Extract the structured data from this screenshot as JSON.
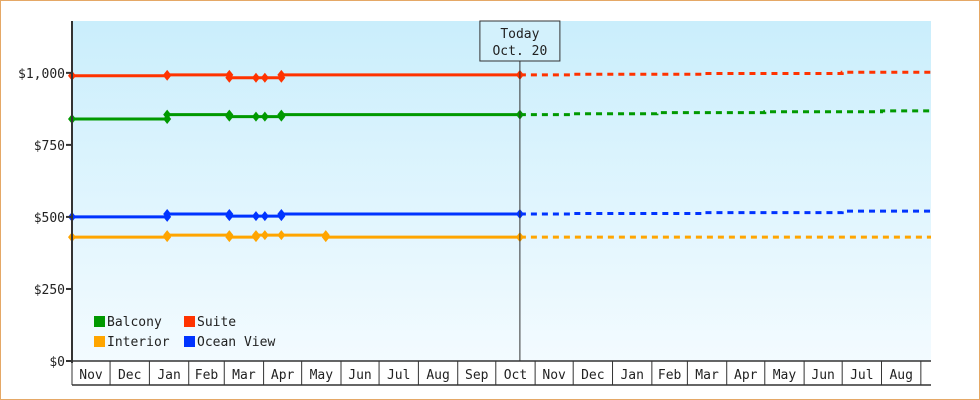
{
  "chart_data": {
    "type": "line",
    "title": "",
    "xlabel": "",
    "ylabel": "",
    "ylim": [
      0,
      1180
    ],
    "xlim": [
      "2012-11-01",
      "2014-09-09"
    ],
    "y_ticks": [
      "$0",
      "$250",
      "$500",
      "$750",
      "$1,000"
    ],
    "y_tick_values": [
      0,
      250,
      500,
      750,
      1000
    ],
    "month_labels": [
      "Nov",
      "Dec",
      "Jan",
      "Feb",
      "Mar",
      "Apr",
      "May",
      "Jun",
      "Jul",
      "Aug",
      "Sep",
      "Oct",
      "Nov",
      "Dec",
      "Jan",
      "Feb",
      "Mar",
      "Apr",
      "May",
      "Jun",
      "Jul",
      "Aug"
    ],
    "grid": false,
    "legend_placement": "bottom-left",
    "today": {
      "title": "Today",
      "date_label": "Oct. 20",
      "date": "2013-10-20"
    },
    "series": [
      {
        "name": "Suite",
        "color": "#ff3300",
        "history": [
          [
            "2012-11-01",
            990
          ],
          [
            "2013-01-15",
            993
          ],
          [
            "2013-03-05",
            983
          ],
          [
            "2013-03-26",
            983
          ],
          [
            "2013-04-02",
            983
          ],
          [
            "2013-04-15",
            993
          ],
          [
            "2013-10-20",
            993
          ]
        ],
        "forecast": [
          [
            "2013-10-20",
            993
          ],
          [
            "2013-12-01",
            995
          ],
          [
            "2014-03-15",
            998
          ],
          [
            "2014-07-01",
            1002
          ],
          [
            "2014-09-09",
            1002
          ]
        ]
      },
      {
        "name": "Balcony",
        "color": "#009900",
        "history": [
          [
            "2012-11-01",
            840
          ],
          [
            "2013-01-15",
            855
          ],
          [
            "2013-03-05",
            848
          ],
          [
            "2013-03-26",
            848
          ],
          [
            "2013-04-02",
            848
          ],
          [
            "2013-04-15",
            855
          ],
          [
            "2013-10-20",
            855
          ]
        ],
        "forecast": [
          [
            "2013-10-20",
            855
          ],
          [
            "2013-11-30",
            858
          ],
          [
            "2014-02-05",
            862
          ],
          [
            "2014-05-01",
            865
          ],
          [
            "2014-08-01",
            868
          ],
          [
            "2014-09-09",
            868
          ]
        ]
      },
      {
        "name": "Interior",
        "color": "#ffa500",
        "history": [
          [
            "2012-11-01",
            430
          ],
          [
            "2013-01-15",
            437
          ],
          [
            "2013-03-05",
            430
          ],
          [
            "2013-03-26",
            437
          ],
          [
            "2013-04-02",
            437
          ],
          [
            "2013-04-15",
            437
          ],
          [
            "2013-05-20",
            430
          ],
          [
            "2013-10-20",
            430
          ]
        ],
        "forecast": [
          [
            "2013-10-20",
            430
          ],
          [
            "2014-09-09",
            430
          ]
        ]
      },
      {
        "name": "Ocean View",
        "color": "#0033ff",
        "history": [
          [
            "2012-11-01",
            500
          ],
          [
            "2013-01-15",
            510
          ],
          [
            "2013-03-05",
            503
          ],
          [
            "2013-03-26",
            503
          ],
          [
            "2013-04-02",
            503
          ],
          [
            "2013-04-15",
            510
          ],
          [
            "2013-10-20",
            510
          ]
        ],
        "forecast": [
          [
            "2013-10-20",
            510
          ],
          [
            "2013-12-01",
            512
          ],
          [
            "2014-03-15",
            515
          ],
          [
            "2014-07-01",
            520
          ],
          [
            "2014-09-09",
            520
          ]
        ]
      }
    ],
    "legend_order": [
      "Balcony",
      "Suite",
      "Interior",
      "Ocean View"
    ]
  }
}
